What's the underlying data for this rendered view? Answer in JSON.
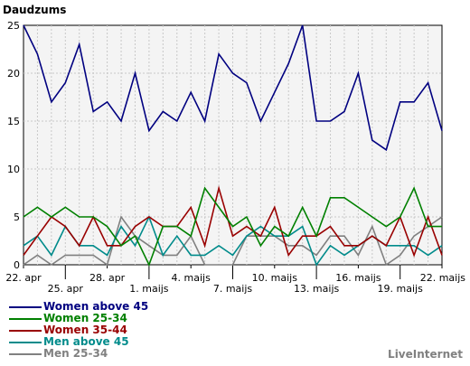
{
  "chart_data": {
    "type": "line",
    "ylabel": "Daudzums",
    "ylim": [
      0,
      25
    ],
    "yticks": [
      0,
      5,
      10,
      15,
      20,
      25
    ],
    "grid": true,
    "x": [
      "22. apr",
      "23. apr",
      "24. apr",
      "25. apr",
      "26. apr",
      "27. apr",
      "28. apr",
      "29. apr",
      "30. apr",
      "1. maijs",
      "2. maijs",
      "3. maijs",
      "4. maijs",
      "5. maijs",
      "6. maijs",
      "7. maijs",
      "8. maijs",
      "9. maijs",
      "10. maijs",
      "11. maijs",
      "12. maijs",
      "13. maijs",
      "14. maijs",
      "15. maijs",
      "16. maijs",
      "17. maijs",
      "18. maijs",
      "19. maijs",
      "20. maijs",
      "21. maijs",
      "22. maijs"
    ],
    "x_tick_labels": [
      "22. apr",
      "25. apr",
      "28. apr",
      "1. maijs",
      "4. maijs",
      "7. maijs",
      "10. maijs",
      "13. maijs",
      "16. maijs",
      "19. maijs",
      "22. maijs"
    ],
    "series": [
      {
        "name": "Women above 45",
        "color": "#000080",
        "values": [
          25,
          22,
          17,
          19,
          23,
          16,
          17,
          15,
          20,
          14,
          16,
          15,
          18,
          15,
          22,
          20,
          19,
          15,
          18,
          21,
          25,
          15,
          15,
          16,
          20,
          13,
          12,
          17,
          17,
          19,
          14
        ]
      },
      {
        "name": "Women 25-34",
        "color": "#008000",
        "values": [
          5,
          6,
          5,
          6,
          5,
          5,
          4,
          2,
          3,
          0,
          4,
          4,
          3,
          8,
          6,
          4,
          5,
          2,
          4,
          3,
          6,
          3,
          7,
          7,
          6,
          5,
          4,
          5,
          8,
          4,
          4
        ]
      },
      {
        "name": "Women 35-44",
        "color": "#990000",
        "values": [
          1,
          3,
          5,
          4,
          2,
          5,
          2,
          2,
          4,
          5,
          4,
          4,
          6,
          2,
          8,
          3,
          4,
          3,
          6,
          1,
          3,
          3,
          4,
          2,
          2,
          3,
          2,
          5,
          1,
          5,
          1
        ]
      },
      {
        "name": "Men above 45",
        "color": "#008B8B",
        "values": [
          2,
          3,
          1,
          4,
          2,
          2,
          1,
          4,
          2,
          5,
          1,
          3,
          1,
          1,
          2,
          1,
          3,
          4,
          3,
          3,
          4,
          0,
          2,
          1,
          2,
          3,
          2,
          2,
          2,
          1,
          2
        ]
      },
      {
        "name": "Men 25-34",
        "color": "#808080",
        "values": [
          0,
          1,
          0,
          1,
          1,
          1,
          0,
          5,
          3,
          2,
          1,
          1,
          3,
          0,
          0,
          0,
          3,
          3,
          3,
          2,
          2,
          1,
          3,
          3,
          1,
          4,
          0,
          1,
          3,
          4,
          5
        ]
      }
    ]
  },
  "brand": "LiveInternet"
}
